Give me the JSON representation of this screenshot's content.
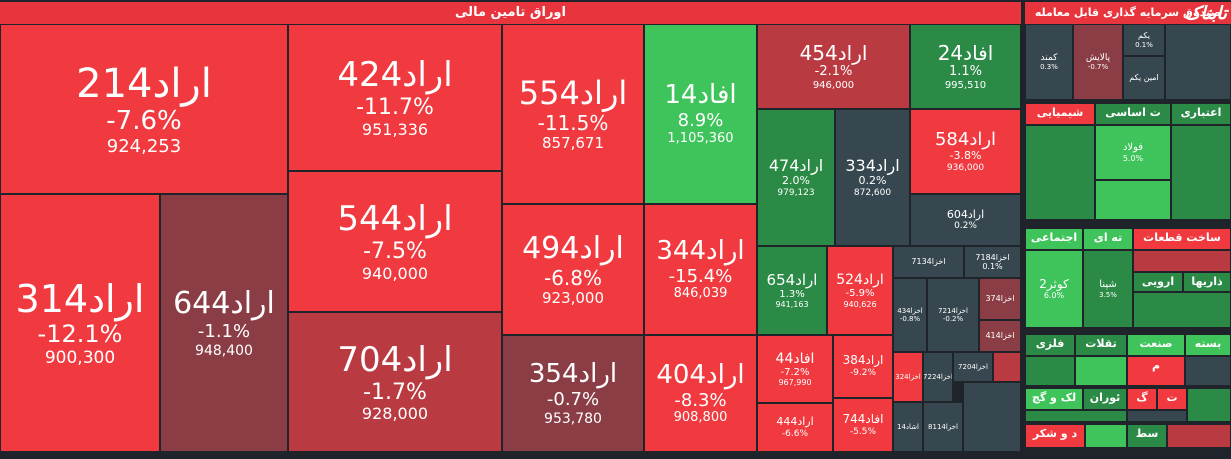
{
  "sections": {
    "bonds_title": "اوراق تامین مالی",
    "fund_title": "صندوق سرمایه گذاری قابل معامله"
  },
  "logo": "تابناک",
  "colors": {
    "red": "#f03a3f",
    "dark_red": "#b93b41",
    "maroon": "#8a3d45",
    "green": "#3ec45a",
    "dark_green": "#2a8a46",
    "gray": "#36474f",
    "bg": "#1e2429"
  },
  "tiles": [
    {
      "name": "اراد214",
      "change": "-7.6%",
      "volume": "924,253"
    },
    {
      "name": "اراد314",
      "change": "-12.1%",
      "volume": "900,300"
    },
    {
      "name": "اراد644",
      "change": "-1.1%",
      "volume": "948,400"
    },
    {
      "name": "اراد424",
      "change": "-11.7%",
      "volume": "951,336"
    },
    {
      "name": "اراد544",
      "change": "-7.5%",
      "volume": "940,000"
    },
    {
      "name": "اراد704",
      "change": "-1.7%",
      "volume": "928,000"
    },
    {
      "name": "اراد554",
      "change": "-11.5%",
      "volume": "857,671"
    },
    {
      "name": "افاد14",
      "change": "8.9%",
      "volume": "1,105,360"
    },
    {
      "name": "اراد494",
      "change": "-6.8%",
      "volume": "923,000"
    },
    {
      "name": "اراد344",
      "change": "-15.4%",
      "volume": "846,039"
    },
    {
      "name": "اراد354",
      "change": "-0.7%",
      "volume": "953,780"
    },
    {
      "name": "اراد404",
      "change": "-8.3%",
      "volume": "908,800"
    },
    {
      "name": "اراد454",
      "change": "-2.1%",
      "volume": "946,000"
    },
    {
      "name": "افاد24",
      "change": "1.1%",
      "volume": "995,510"
    },
    {
      "name": "اراد474",
      "change": "2.0%",
      "volume": "979,123"
    },
    {
      "name": "اراد334",
      "change": "0.2%",
      "volume": "872,600"
    },
    {
      "name": "اراد584",
      "change": "-3.8%",
      "volume": "936,000"
    },
    {
      "name": "اراد604",
      "change": "0.2%",
      "volume": ""
    },
    {
      "name": "اراد654",
      "change": "1.3%",
      "volume": "941,163"
    },
    {
      "name": "اراد524",
      "change": "-5.9%",
      "volume": "940,626"
    },
    {
      "name": "افاد44",
      "change": "-7.2%",
      "volume": "967,990"
    },
    {
      "name": "اراد384",
      "change": "-9.2%",
      "volume": ""
    },
    {
      "name": "اراد444",
      "change": "-6.6%",
      "volume": ""
    },
    {
      "name": "افاد744",
      "change": "-5.5%",
      "volume": ""
    }
  ],
  "small_tiles": [
    {
      "name": "اخزا7134",
      "change": ""
    },
    {
      "name": "اخزا7184",
      "change": "0.1%"
    },
    {
      "name": "اخزا434",
      "change": "-0.8%"
    },
    {
      "name": "اخزا7214",
      "change": "-0.2%"
    },
    {
      "name": "اخزا374",
      "change": ""
    },
    {
      "name": "اخزا414",
      "change": ""
    },
    {
      "name": "اخزا324",
      "change": ""
    },
    {
      "name": "اخزا7224",
      "change": ""
    },
    {
      "name": "اخزا7204",
      "change": ""
    },
    {
      "name": "اشاد14",
      "change": ""
    },
    {
      "name": "اخزا8114",
      "change": ""
    }
  ],
  "fund_tiles": [
    {
      "name": "کمند",
      "change": "0.3%"
    },
    {
      "name": "پالایش",
      "change": "-0.7%"
    },
    {
      "name": "یکم",
      "change": "0.1%"
    },
    {
      "name": "امین یکم",
      "change": ""
    }
  ],
  "groups": [
    {
      "label": "شیمیایی"
    },
    {
      "label": "ت اساسی"
    },
    {
      "label": "اعتباری"
    },
    {
      "label": "فولاد",
      "sub": "5.0%"
    },
    {
      "label": "پترول"
    },
    {
      "label": "ساخت قطعات"
    },
    {
      "label": "اجتماعی"
    },
    {
      "label": "ته ای"
    },
    {
      "label": "کوثر2",
      "sub": "6.0%"
    },
    {
      "label": "شپنا",
      "sub": "3.5%"
    },
    {
      "label": "ارویی"
    },
    {
      "label": "ذاریها"
    },
    {
      "label": "فلزی"
    },
    {
      "label": "تقلات"
    },
    {
      "label": "صنعت"
    },
    {
      "label": "بسته"
    },
    {
      "label": "م"
    },
    {
      "label": "لک و گچ"
    },
    {
      "label": "ئوران"
    },
    {
      "label": "گ"
    },
    {
      "label": "ت"
    },
    {
      "label": "د و شکر"
    },
    {
      "label": "سط"
    }
  ]
}
